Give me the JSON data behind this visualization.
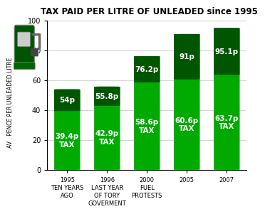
{
  "title": "TAX PAID PER LITRE OF UNLEADED since 1995",
  "ylabel": "AV . PENCE PER UNLEADED LITRE",
  "ylim": [
    0,
    100
  ],
  "yticks": [
    0,
    20,
    40,
    60,
    80,
    100
  ],
  "categories": [
    "1995\nTEN YEARS\nAGO",
    "1996\nLAST YEAR\nOF TORY\nGOVERMENT",
    "2000\nFUEL\nPROTESTS",
    "2005",
    "2007"
  ],
  "tax_values": [
    39.4,
    42.9,
    58.6,
    60.6,
    63.7
  ],
  "total_values": [
    54.0,
    55.8,
    76.2,
    91.0,
    95.1
  ],
  "tax_labels": [
    "39.4p\nTAX",
    "42.9p\nTAX",
    "58.6p\nTAX",
    "60.6p\nTAX",
    "63.7p\nTAX"
  ],
  "total_labels": [
    "54p",
    "55.8p",
    "76.2p",
    "91p",
    "95.1p"
  ],
  "color_light_green": "#00AA00",
  "color_dark_green": "#005500",
  "background_color": "#ffffff",
  "bar_width": 0.65,
  "title_fontsize": 8.5,
  "label_fontsize": 7.5
}
